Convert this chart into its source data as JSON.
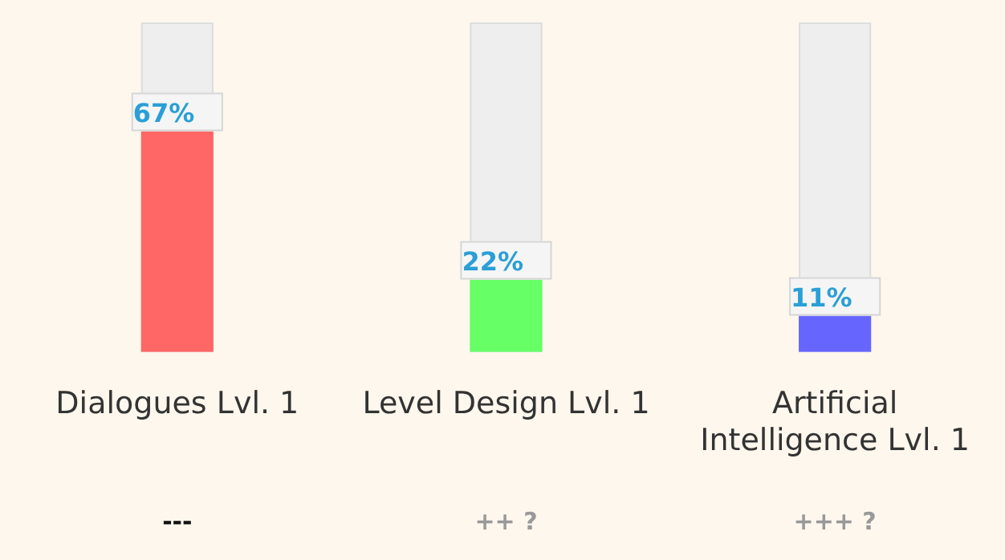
{
  "chart_data": {
    "type": "bar",
    "categories": [
      "Dialogues Lvl. 1",
      "Level Design Lvl. 1",
      "Artificial Intelligence Lvl. 1"
    ],
    "values": [
      67,
      22,
      11
    ],
    "colors": [
      "#ff6666",
      "#66ff66",
      "#6666ff"
    ],
    "value_labels": [
      "67%",
      "22%",
      "11%"
    ],
    "ylim": [
      0,
      100
    ],
    "tick_labels": "x",
    "grid": false,
    "legend": false,
    "annotations": [
      "---",
      "++ ?",
      "+++ ?"
    ]
  }
}
